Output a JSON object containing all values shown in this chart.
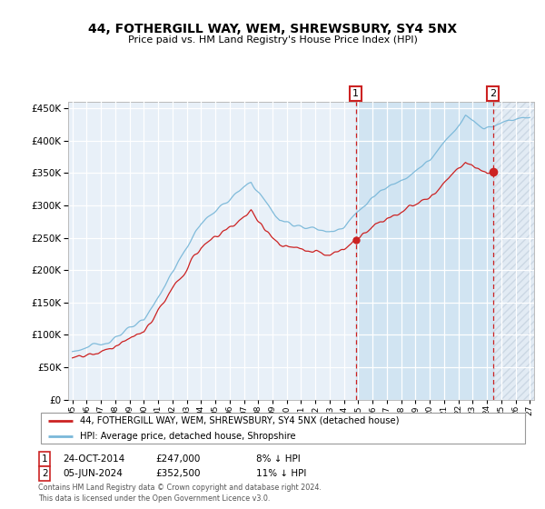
{
  "title": "44, FOTHERGILL WAY, WEM, SHREWSBURY, SY4 5NX",
  "subtitle": "Price paid vs. HM Land Registry's House Price Index (HPI)",
  "legend_line1": "44, FOTHERGILL WAY, WEM, SHREWSBURY, SY4 5NX (detached house)",
  "legend_line2": "HPI: Average price, detached house, Shropshire",
  "annotation1_date": "24-OCT-2014",
  "annotation1_price": "£247,000",
  "annotation1_hpi": "8% ↓ HPI",
  "annotation2_date": "05-JUN-2024",
  "annotation2_price": "£352,500",
  "annotation2_hpi": "11% ↓ HPI",
  "footer": "Contains HM Land Registry data © Crown copyright and database right 2024.\nThis data is licensed under the Open Government Licence v3.0.",
  "hpi_color": "#7ab8d9",
  "price_color": "#cc2222",
  "dashed_color": "#cc2222",
  "ylim": [
    0,
    460000
  ],
  "yticks": [
    0,
    50000,
    100000,
    150000,
    200000,
    250000,
    300000,
    350000,
    400000,
    450000
  ],
  "purchase1_x": 2014.82,
  "purchase1_y": 247000,
  "purchase2_x": 2024.43,
  "purchase2_y": 352500,
  "xlim_start": 1994.7,
  "xlim_end": 2027.3,
  "bg_color": "#e8f0f8",
  "bg_color_future": "#dde8f0",
  "grid_color": "#ffffff"
}
